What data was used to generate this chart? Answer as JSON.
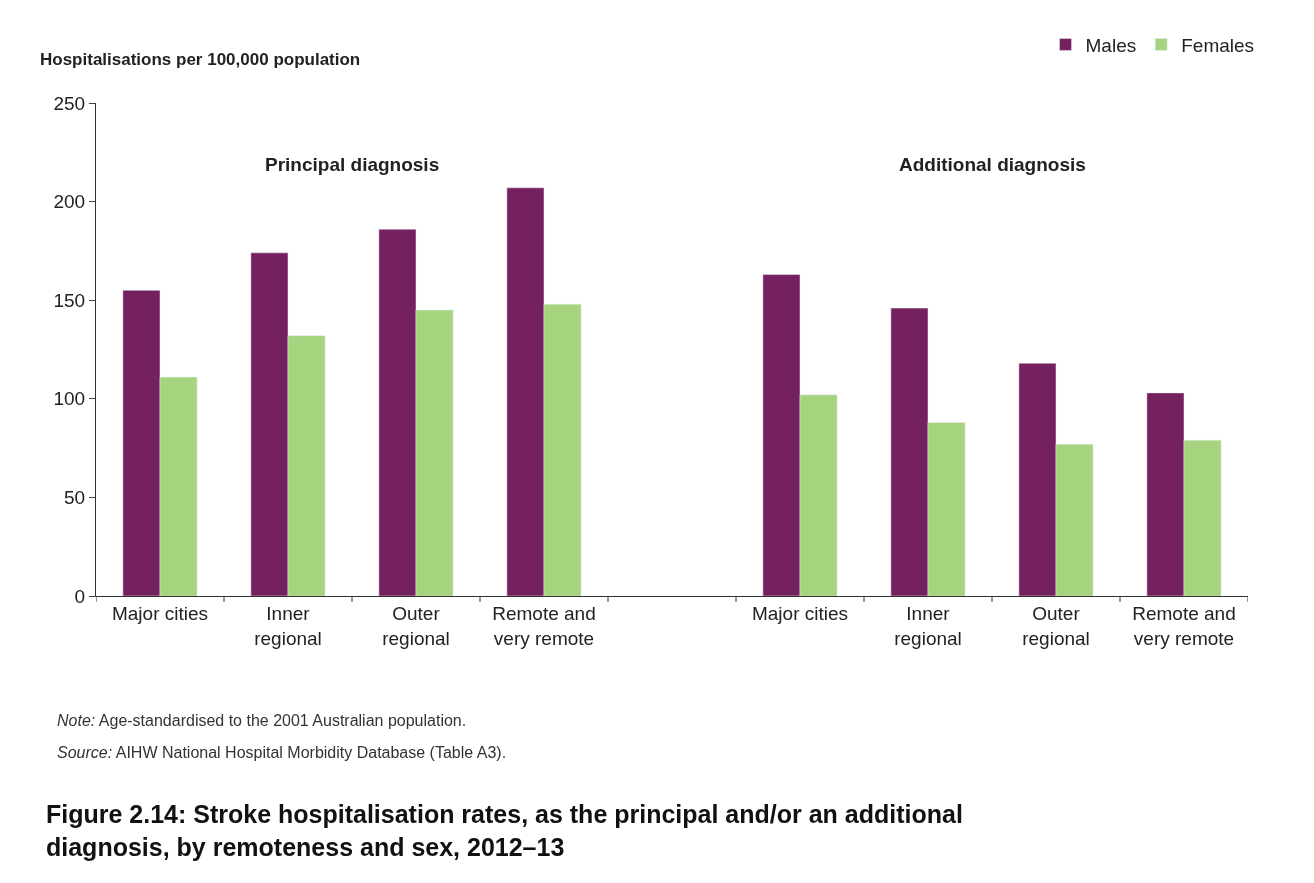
{
  "chart_data": {
    "type": "bar",
    "title": "Figure 2.14: Stroke hospitalisation rates, as the principal and/or an additional diagnosis, by remoteness and sex, 2012–13",
    "ylabel": "Hospitalisations per 100,000 population",
    "categories": [
      "Major cities",
      "Inner\nregional",
      "Outer\nregional",
      "Remote and\nvery remote",
      null,
      "Major cities",
      "Inner\nregional",
      "Outer\nregional",
      "Remote and\nvery remote"
    ],
    "series": [
      {
        "name": "Males",
        "color": "#76215f",
        "values": [
          155,
          174,
          186,
          207,
          null,
          163,
          146,
          118,
          103
        ]
      },
      {
        "name": "Females",
        "color": "#a6d47e",
        "values": [
          111,
          132,
          145,
          148,
          null,
          102,
          88,
          77,
          79
        ]
      }
    ],
    "ylim": [
      0,
      250
    ],
    "yticks": [
      0,
      50,
      100,
      150,
      200,
      250
    ],
    "legend": "top right",
    "annotations": [
      "Principal diagnosis",
      "Additional diagnosis",
      "Note: Age-standardised to the 2001 Australian population.",
      "Source: AIHW National Hospital Morbidity Database (Table A3)."
    ]
  }
}
